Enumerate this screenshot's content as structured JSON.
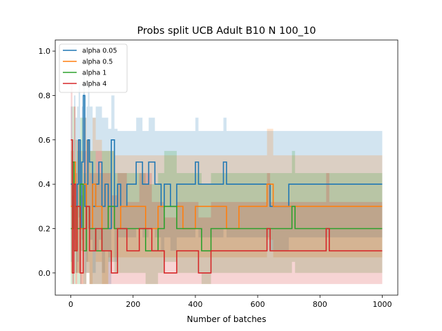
{
  "chart_data": {
    "type": "line",
    "title": "Probs split UCB Adult B10 N 100_10",
    "xlabel": "Number of batches",
    "ylabel": "",
    "xlim": [
      -50,
      1050
    ],
    "ylim": [
      -0.1,
      1.05
    ],
    "xticks": [
      0,
      200,
      400,
      600,
      800,
      1000
    ],
    "yticks": [
      0.0,
      0.2,
      0.4,
      0.6,
      0.8,
      1.0
    ],
    "xtick_labels": [
      "0",
      "200",
      "400",
      "600",
      "800",
      "1000"
    ],
    "ytick_labels": [
      "0.0",
      "0.2",
      "0.4",
      "0.6",
      "0.8",
      "1.0"
    ],
    "grid": false,
    "legend_position": "top-left",
    "series": [
      {
        "name": "alpha 0.05",
        "color": "#1f77b4",
        "band_color": "#1f77b4",
        "x": [
          0,
          5,
          10,
          15,
          20,
          25,
          30,
          35,
          40,
          45,
          50,
          55,
          60,
          70,
          80,
          90,
          100,
          110,
          120,
          130,
          140,
          150,
          160,
          180,
          200,
          210,
          230,
          250,
          270,
          290,
          300,
          320,
          340,
          360,
          380,
          400,
          410,
          450,
          490,
          500,
          520,
          600,
          640,
          700,
          800,
          900,
          1000
        ],
        "y": [
          0.4,
          0.2,
          0.5,
          0.3,
          0.4,
          0.6,
          0.2,
          0.5,
          0.8,
          0.3,
          0.4,
          0.6,
          0.5,
          0.3,
          0.4,
          0.5,
          0.3,
          0.4,
          0.2,
          0.6,
          0.3,
          0.4,
          0.3,
          0.4,
          0.4,
          0.5,
          0.4,
          0.5,
          0.4,
          0.3,
          0.4,
          0.3,
          0.4,
          0.4,
          0.4,
          0.5,
          0.4,
          0.4,
          0.5,
          0.4,
          0.4,
          0.4,
          0.3,
          0.4,
          0.4,
          0.4,
          0.4
        ],
        "upper": [
          0.75,
          0.6,
          0.8,
          0.7,
          0.75,
          0.85,
          0.6,
          0.75,
          0.9,
          0.7,
          0.75,
          0.85,
          0.75,
          0.7,
          0.75,
          0.75,
          0.7,
          0.7,
          0.65,
          0.8,
          0.65,
          0.64,
          0.64,
          0.64,
          0.64,
          0.7,
          0.64,
          0.7,
          0.64,
          0.64,
          0.64,
          0.64,
          0.64,
          0.64,
          0.64,
          0.7,
          0.64,
          0.64,
          0.7,
          0.64,
          0.64,
          0.64,
          0.64,
          0.64,
          0.64,
          0.64,
          0.64
        ],
        "lower": [
          0.05,
          -0.05,
          0.15,
          0.0,
          0.05,
          0.25,
          -0.05,
          0.15,
          0.4,
          0.0,
          0.05,
          0.2,
          0.15,
          0.0,
          0.1,
          0.15,
          0.0,
          0.1,
          -0.05,
          0.2,
          0.05,
          0.16,
          0.16,
          0.16,
          0.16,
          0.2,
          0.16,
          0.2,
          0.16,
          0.1,
          0.16,
          0.1,
          0.16,
          0.16,
          0.16,
          0.2,
          0.16,
          0.16,
          0.2,
          0.16,
          0.16,
          0.16,
          0.1,
          0.16,
          0.16,
          0.16,
          0.16
        ]
      },
      {
        "name": "alpha 0.5",
        "color": "#ff7f0e",
        "band_color": "#ff7f0e",
        "x": [
          0,
          5,
          10,
          15,
          20,
          30,
          40,
          50,
          60,
          70,
          80,
          100,
          120,
          140,
          160,
          200,
          240,
          280,
          320,
          360,
          400,
          450,
          500,
          540,
          600,
          620,
          630,
          650,
          700,
          800,
          900,
          1000
        ],
        "y": [
          0.3,
          0.2,
          0.5,
          0.1,
          0.3,
          0.2,
          0.4,
          0.3,
          0.2,
          0.4,
          0.3,
          0.2,
          0.3,
          0.2,
          0.3,
          0.3,
          0.2,
          0.3,
          0.3,
          0.2,
          0.3,
          0.3,
          0.2,
          0.3,
          0.3,
          0.3,
          0.4,
          0.3,
          0.3,
          0.3,
          0.3,
          0.3
        ],
        "upper": [
          0.6,
          0.55,
          0.75,
          0.45,
          0.6,
          0.55,
          0.7,
          0.6,
          0.55,
          0.7,
          0.6,
          0.55,
          0.55,
          0.53,
          0.53,
          0.53,
          0.53,
          0.53,
          0.53,
          0.53,
          0.53,
          0.53,
          0.53,
          0.53,
          0.53,
          0.53,
          0.65,
          0.53,
          0.53,
          0.53,
          0.53,
          0.53
        ],
        "lower": [
          0.0,
          -0.05,
          0.2,
          -0.05,
          0.0,
          -0.05,
          0.1,
          0.05,
          -0.05,
          0.1,
          0.05,
          -0.05,
          0.07,
          0.07,
          0.07,
          0.07,
          0.07,
          0.07,
          0.07,
          0.07,
          0.07,
          0.07,
          0.07,
          0.07,
          0.07,
          0.07,
          0.15,
          0.07,
          0.07,
          0.07,
          0.07,
          0.07
        ]
      },
      {
        "name": "alpha 1",
        "color": "#2ca02c",
        "band_color": "#2ca02c",
        "x": [
          0,
          5,
          10,
          15,
          20,
          30,
          40,
          50,
          60,
          80,
          100,
          120,
          140,
          160,
          200,
          240,
          280,
          300,
          340,
          360,
          400,
          420,
          450,
          500,
          540,
          600,
          630,
          700,
          710,
          720,
          800,
          900,
          1000
        ],
        "y": [
          0.2,
          0.5,
          0.1,
          0.3,
          0.2,
          0.4,
          0.1,
          0.3,
          0.2,
          0.1,
          0.2,
          0.3,
          0.2,
          0.2,
          0.2,
          0.1,
          0.2,
          0.3,
          0.2,
          0.2,
          0.2,
          0.1,
          0.2,
          0.2,
          0.2,
          0.2,
          0.2,
          0.2,
          0.3,
          0.2,
          0.2,
          0.2,
          0.2
        ],
        "upper": [
          0.55,
          0.75,
          0.45,
          0.6,
          0.55,
          0.7,
          0.45,
          0.6,
          0.55,
          0.45,
          0.55,
          0.55,
          0.45,
          0.45,
          0.45,
          0.4,
          0.45,
          0.55,
          0.45,
          0.45,
          0.45,
          0.4,
          0.45,
          0.45,
          0.45,
          0.45,
          0.45,
          0.45,
          0.55,
          0.45,
          0.45,
          0.45,
          0.45
        ],
        "lower": [
          -0.05,
          0.2,
          -0.05,
          0.0,
          -0.05,
          0.1,
          -0.05,
          0.0,
          -0.05,
          -0.05,
          -0.05,
          0.05,
          0.0,
          0.0,
          0.0,
          -0.05,
          0.0,
          0.05,
          0.0,
          0.0,
          0.0,
          -0.05,
          0.0,
          0.0,
          0.0,
          0.0,
          0.0,
          0.0,
          0.05,
          0.0,
          0.0,
          0.0,
          0.0
        ]
      },
      {
        "name": "alpha 4",
        "color": "#d62728",
        "band_color": "#d62728",
        "x": [
          0,
          5,
          10,
          15,
          20,
          30,
          40,
          50,
          60,
          80,
          100,
          130,
          150,
          180,
          200,
          220,
          260,
          300,
          340,
          380,
          400,
          410,
          450,
          500,
          560,
          600,
          630,
          640,
          700,
          800,
          820,
          830,
          900,
          1000
        ],
        "y": [
          0.6,
          0.0,
          0.4,
          0.1,
          0.3,
          0.0,
          0.2,
          0.3,
          0.1,
          0.2,
          0.1,
          0.0,
          0.2,
          0.1,
          0.1,
          0.2,
          0.1,
          0.0,
          0.1,
          0.1,
          0.1,
          0.0,
          0.1,
          0.1,
          0.1,
          0.1,
          0.2,
          0.1,
          0.1,
          0.1,
          0.2,
          0.1,
          0.1,
          0.1
        ],
        "upper": [
          0.85,
          0.35,
          0.75,
          0.45,
          0.6,
          0.35,
          0.55,
          0.6,
          0.45,
          0.55,
          0.45,
          0.35,
          0.45,
          0.32,
          0.32,
          0.45,
          0.32,
          0.25,
          0.32,
          0.32,
          0.32,
          0.25,
          0.32,
          0.32,
          0.32,
          0.32,
          0.45,
          0.32,
          0.32,
          0.32,
          0.45,
          0.32,
          0.32,
          0.32
        ],
        "lower": [
          0.3,
          -0.05,
          0.1,
          -0.05,
          0.0,
          -0.05,
          -0.05,
          0.0,
          -0.05,
          -0.05,
          -0.05,
          -0.05,
          -0.05,
          -0.05,
          -0.05,
          -0.05,
          -0.05,
          -0.05,
          -0.05,
          -0.05,
          -0.05,
          -0.05,
          -0.05,
          -0.05,
          -0.05,
          -0.05,
          -0.05,
          -0.05,
          -0.05,
          -0.05,
          -0.05,
          -0.05,
          -0.05,
          -0.05
        ]
      }
    ]
  }
}
